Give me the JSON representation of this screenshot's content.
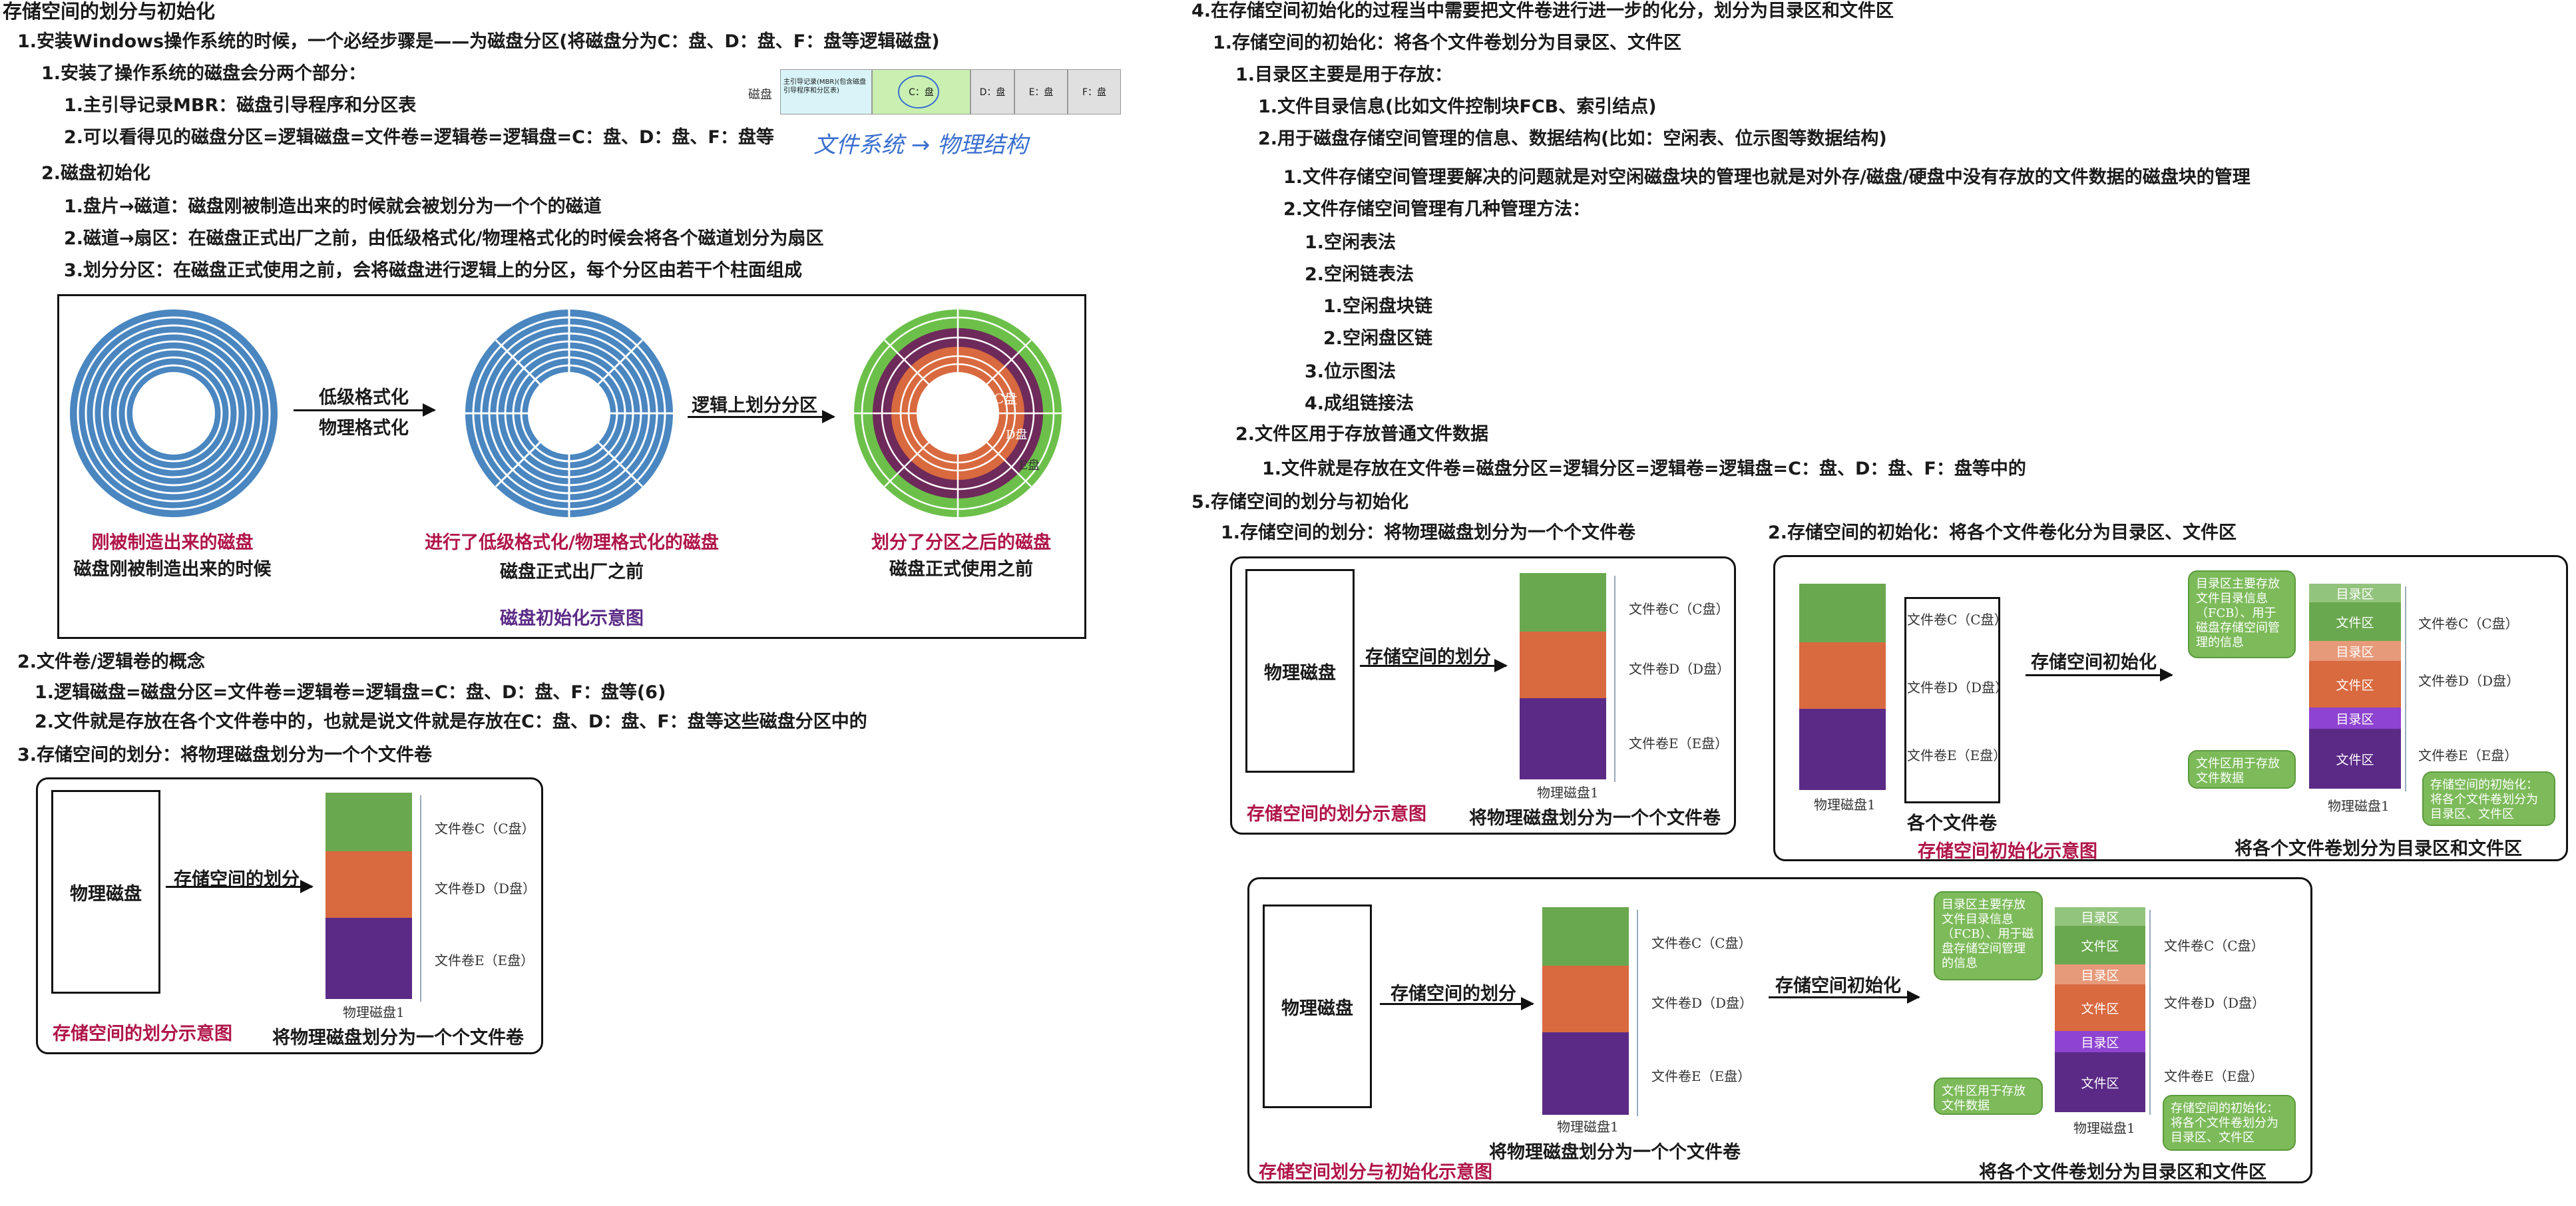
{
  "left": {
    "title": "存储空间的划分与初始化",
    "l1": "1.安装Windows操作系统的时候，一个必经步骤是——为磁盘分区(将磁盘分为C：盘、D：盘、F：盘等逻辑磁盘)",
    "l1_1": "1.安装了操作系统的磁盘会分两个部分：",
    "l1_1_1": "1.主引导记录MBR：磁盘引导程序和分区表",
    "l1_1_2": "2.可以看得见的磁盘分区=逻辑磁盘=文件卷=逻辑卷=逻辑盘=C：盘、D：盘、F：盘等",
    "disk_bar": {
      "label": "磁盘",
      "mbr": "主引导记录(MBR)(包含磁盘引导程序和分区表)",
      "c": "C：盘",
      "d": "D：盘",
      "e": "E：盘",
      "f": "F：盘"
    },
    "handwriting": "文件系统 → 物理结构",
    "l2": "2.磁盘初始化",
    "l2_1": "1.盘片→磁道：磁盘刚被制造出来的时候就会被划分为一个个的磁道",
    "l2_2": "2.磁道→扇区：在磁盘正式出厂之前，由低级格式化/物理格式化的时候会将各个磁道划分为扇区",
    "l2_3": "3.划分分区：在磁盘正式使用之前，会将磁盘进行逻辑上的分区，每个分区由若干个柱面组成",
    "init_fig": {
      "arrow1_a": "低级格式化",
      "arrow1_b": "物理格式化",
      "arrow2": "逻辑上划分分区",
      "cap1_red": "刚被制造出来的磁盘",
      "cap1": "磁盘刚被制造出来的时候",
      "cap2_red": "进行了低级格式化/物理格式化的磁盘",
      "cap2": "磁盘正式出厂之前",
      "cap3_red": "划分了分区之后的磁盘",
      "cap3": "磁盘正式使用之前",
      "part_c": "C盘",
      "part_d": "D盘",
      "part_e": "E盘",
      "caption": "磁盘初始化示意图"
    },
    "l3": "2.文件卷/逻辑卷的概念",
    "l3_1": "1.逻辑磁盘=磁盘分区=文件卷=逻辑卷=逻辑盘=C：盘、D：盘、F：盘等(6)",
    "l3_2": "2.文件就是存放在各个文件卷中的，也就是说文件就是存放在C：盘、D：盘、F：盘等这些磁盘分区中的",
    "l4": "3.存储空间的划分：将物理磁盘划分为一个个文件卷",
    "div_fig": {
      "box": "物理磁盘",
      "arrow": "存储空间的划分",
      "vol_c": "文件卷C（C盘）",
      "vol_d": "文件卷D（D盘）",
      "vol_e": "文件卷E（E盘）",
      "disk_label": "物理磁盘1",
      "cap_red": "存储空间的划分示意图",
      "cap": "将物理磁盘划分为一个个文件卷"
    }
  },
  "right": {
    "r4": "4.在存储空间初始化的过程当中需要把文件卷进行进一步的化分，划分为目录区和文件区",
    "r4_1": "1.存储空间的初始化：将各个文件卷划分为目录区、文件区",
    "r4_1_1": "1.目录区主要是用于存放：",
    "r4_1_1_1": "1.文件目录信息(比如文件控制块FCB、索引结点)",
    "r4_1_1_2": "2.用于磁盘存储空间管理的信息、数据结构(比如：空闲表、位示图等数据结构)",
    "r4_1_1_2_1": "1.文件存储空间管理要解决的问题就是对空闲磁盘块的管理也就是对外存/磁盘/硬盘中没有存放的文件数据的磁盘块的管理",
    "r4_1_1_2_2": "2.文件存储空间管理有几种管理方法：",
    "m1": "1.空闲表法",
    "m2": "2.空闲链表法",
    "m2_1": "1.空闲盘块链",
    "m2_2": "2.空闲盘区链",
    "m3": "3.位示图法",
    "m4": "4.成组链接法",
    "r4_1_2": "2.文件区用于存放普通文件数据",
    "r4_1_2_1": "1.文件就是存放在文件卷=磁盘分区=逻辑分区=逻辑卷=逻辑盘=C：盘、D：盘、F：盘等中的",
    "r5": "5.存储空间的划分与初始化",
    "r5_1_u": "存储空间的划分",
    "r5_1": "1.存储空间的划分：将物理磁盘划分为一个个文件卷",
    "r5_2_u": "存储空间的初始化",
    "r5_2": "2.存储空间的初始化：将各个文件卷化分为目录区、文件区",
    "fig_a": {
      "box": "物理磁盘",
      "arrow": "存储空间的划分",
      "vol_c": "文件卷C（C盘）",
      "vol_d": "文件卷D（D盘）",
      "vol_e": "文件卷E（E盘）",
      "disk_label": "物理磁盘1",
      "cap_red": "存储空间的划分示意图",
      "cap": "将物理磁盘划分为一个个文件卷"
    },
    "fig_b": {
      "vol_c": "文件卷C（C盘）",
      "vol_d": "文件卷D（D盘）",
      "vol_e": "文件卷E（E盘）",
      "disk_label": "物理磁盘1",
      "each_vol": "各个文件卷",
      "arrow": "存储空间初始化",
      "dir": "目录区",
      "file": "文件区",
      "note_dir": "目录区主要存放文件目录信息（FCB）、用于磁盘存储空间管理的信息",
      "note_file": "文件区用于存放文件数据",
      "note_init": "存储空间的初始化：将各个文件卷划分为目录区、文件区",
      "cap_red": "存储空间初始化示意图",
      "cap": "将各个文件卷划分为目录区和文件区"
    },
    "fig_c": {
      "box": "物理磁盘",
      "arrow1": "存储空间的划分",
      "arrow2": "存储空间初始化",
      "vol_c": "文件卷C（C盘）",
      "vol_d": "文件卷D（D盘）",
      "vol_e": "文件卷E（E盘）",
      "disk_label": "物理磁盘1",
      "dir": "目录区",
      "file": "文件区",
      "note_dir": "目录区主要存放文件目录信息（FCB）、用于磁盘存储空间管理的信息",
      "note_file": "文件区用于存放文件数据",
      "note_init": "存储空间的初始化：将各个文件卷划分为目录区、文件区",
      "cap_mid": "将物理磁盘划分为一个个文件卷",
      "cap_red": "存储空间划分与初始化示意图",
      "cap": "将各个文件卷划分为目录区和文件区"
    }
  },
  "colors": {
    "green": "#6aa84f",
    "orange": "#d9693f",
    "purple": "#5b2a86",
    "disk_blue": "#4a86c0",
    "red_caption": "#b0154a",
    "dir_green": "#93c47d",
    "dir_orange": "#e69a7a",
    "dir_purple": "#8e44d0"
  }
}
